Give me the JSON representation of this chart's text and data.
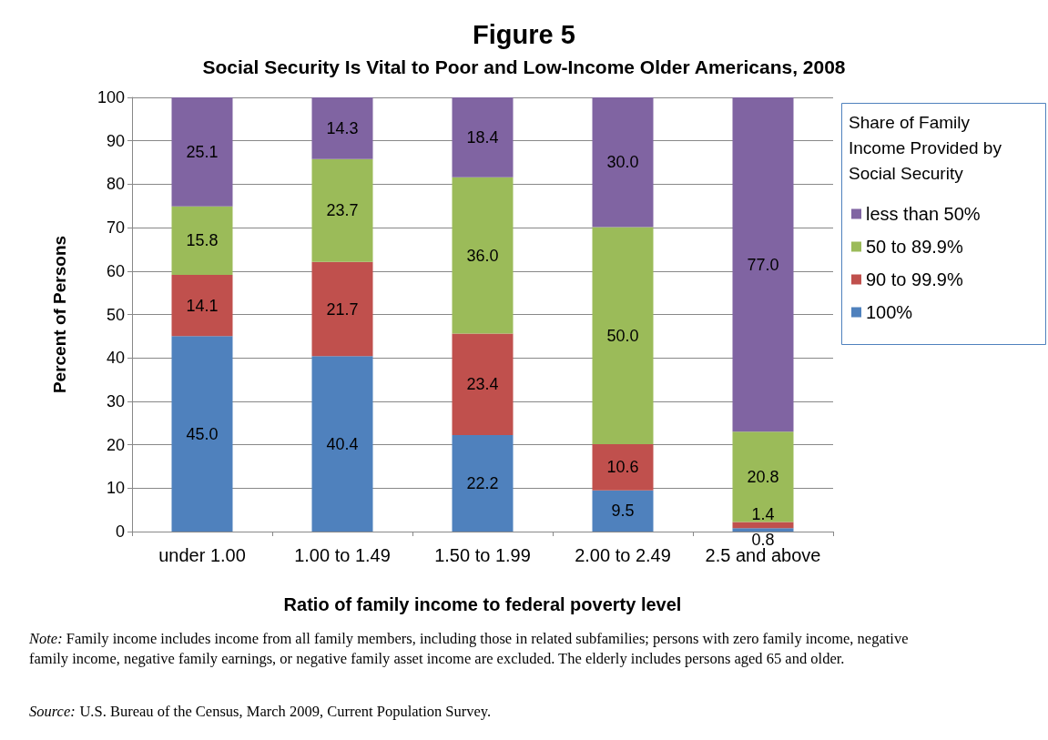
{
  "chart_data": {
    "type": "bar",
    "stacked": true,
    "title": "Figure 5",
    "subtitle": "Social Security Is Vital to Poor and Low-Income Older Americans, 2008",
    "xlabel": "Ratio of family income to federal poverty level",
    "ylabel": "Percent of Persons",
    "legend_title": "Share of Family Income Provided by Social Security",
    "categories": [
      "under 1.00",
      "1.00 to 1.49",
      "1.50 to 1.99",
      "2.00 to 2.49",
      "2.5 and above"
    ],
    "series": [
      {
        "name": "100%",
        "color": "#4f81bd",
        "values": [
          45.0,
          40.4,
          22.2,
          9.5,
          0.8
        ],
        "value_labels": [
          "45.0",
          "40.4",
          "22.2",
          "9.5",
          "0.8"
        ]
      },
      {
        "name": "90 to 99.9%",
        "color": "#c0504d",
        "values": [
          14.1,
          21.7,
          23.4,
          10.6,
          1.4
        ],
        "value_labels": [
          "14.1",
          "21.7",
          "23.4",
          "10.6",
          "1.4"
        ]
      },
      {
        "name": "50 to 89.9%",
        "color": "#9bbb59",
        "values": [
          15.8,
          23.7,
          36.0,
          50.0,
          20.8
        ],
        "value_labels": [
          "15.8",
          "23.7",
          "36.0",
          "50.0",
          "20.8"
        ]
      },
      {
        "name": "less than 50%",
        "color": "#8064a2",
        "values": [
          25.1,
          14.3,
          18.4,
          30.0,
          77.0
        ],
        "value_labels": [
          "25.1",
          "14.3",
          "18.4",
          "30.0",
          "77.0"
        ]
      }
    ],
    "ylim": [
      0,
      100
    ],
    "yticks": [
      0,
      10,
      20,
      30,
      40,
      50,
      60,
      70,
      80,
      90,
      100
    ],
    "grid": "y",
    "legend": "right",
    "annotations": [
      "Note: Family income includes income from all family members, including those in related subfamilies; persons with zero family income, negative family income, negative family earnings, or negative family asset income are excluded. The elderly includes persons aged 65 and older.",
      "Source: U.S. Bureau of the Census, March 2009, Current Population Survey."
    ]
  }
}
